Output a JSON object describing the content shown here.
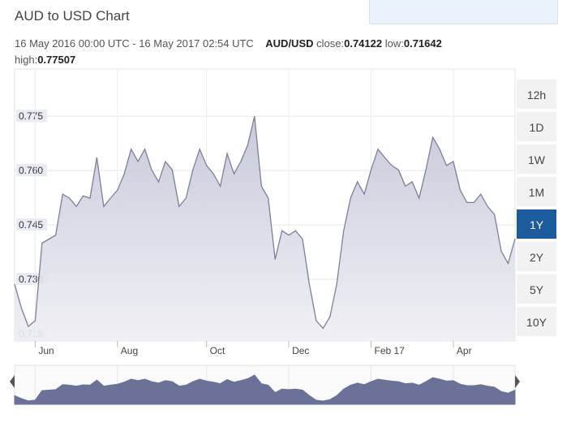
{
  "header": {
    "title": "AUD to USD Chart",
    "subtitle": {
      "range": "16 May 2016 00:00 UTC - 16 May 2017 02:54 UTC",
      "pair": "AUD/USD",
      "close_label": "close:",
      "close": 0.74122,
      "low_label": "low:",
      "low": 0.71642,
      "high_label": "high:",
      "high": 0.77507
    }
  },
  "range_buttons": [
    {
      "label": "12h",
      "selected": false
    },
    {
      "label": "1D",
      "selected": false
    },
    {
      "label": "1W",
      "selected": false
    },
    {
      "label": "1M",
      "selected": false
    },
    {
      "label": "1Y",
      "selected": true
    },
    {
      "label": "2Y",
      "selected": false
    },
    {
      "label": "5Y",
      "selected": false
    },
    {
      "label": "10Y",
      "selected": false
    }
  ],
  "chart_data": {
    "type": "area",
    "color": "#7b7f9b",
    "fill": "#c9cbdb",
    "navigator_color": "#6b7197",
    "grid": true,
    "categories": [
      null,
      null,
      null,
      "Jun",
      null,
      null,
      null,
      null,
      null,
      null,
      null,
      null,
      null,
      null,
      null,
      "Aug",
      null,
      null,
      null,
      null,
      null,
      null,
      null,
      null,
      null,
      null,
      null,
      null,
      "Oct",
      null,
      null,
      null,
      null,
      null,
      null,
      null,
      null,
      null,
      null,
      null,
      "Dec",
      null,
      null,
      null,
      null,
      null,
      null,
      null,
      null,
      null,
      null,
      null,
      "Feb 17",
      null,
      null,
      null,
      null,
      null,
      null,
      null,
      null,
      null,
      null,
      null,
      "Apr",
      null,
      null,
      null,
      null,
      null,
      null,
      null,
      null,
      null
    ],
    "values": [
      0.7287,
      0.722,
      0.717,
      0.7186,
      0.74,
      0.7411,
      0.7422,
      0.7535,
      0.7524,
      0.7501,
      0.753,
      0.7524,
      0.7636,
      0.7501,
      0.7524,
      0.7546,
      0.7591,
      0.7659,
      0.7625,
      0.7659,
      0.7602,
      0.7569,
      0.7625,
      0.7602,
      0.7501,
      0.7524,
      0.7602,
      0.7659,
      0.7614,
      0.7591,
      0.7557,
      0.7647,
      0.7591,
      0.7625,
      0.767,
      0.775,
      0.7557,
      0.7524,
      0.7355,
      0.7434,
      0.7422,
      0.7434,
      0.7411,
      0.7287,
      0.7186,
      0.7165,
      0.7197,
      0.7287,
      0.7434,
      0.7524,
      0.7569,
      0.7535,
      0.7602,
      0.7659,
      0.7636,
      0.7614,
      0.7602,
      0.7557,
      0.7569,
      0.7524,
      0.7602,
      0.7692,
      0.7659,
      0.7614,
      0.7625,
      0.7546,
      0.7512,
      0.7512,
      0.7535,
      0.7501,
      0.7479,
      0.7377,
      0.7344,
      0.7412
    ],
    "ylim": [
      0.713,
      0.788
    ],
    "yticks": [
      0.715,
      {
        "value": 0.73,
        "label": "0.730"
      },
      0.745,
      {
        "value": 0.76,
        "label": "0.760"
      },
      0.775
    ]
  }
}
